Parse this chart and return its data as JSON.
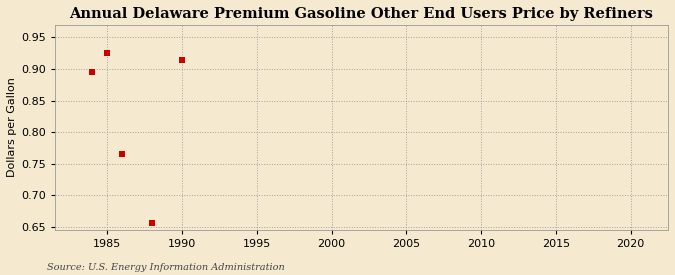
{
  "title": "Annual Delaware Premium Gasoline Other End Users Price by Refiners",
  "ylabel": "Dollars per Gallon",
  "source": "Source: U.S. Energy Information Administration",
  "x_data": [
    1984,
    1985,
    1986,
    1988,
    1990
  ],
  "y_data": [
    0.895,
    0.925,
    0.765,
    0.655,
    0.915
  ],
  "marker_color": "#cc0000",
  "marker": "s",
  "marker_size": 4,
  "xlim": [
    1981.5,
    2022.5
  ],
  "ylim": [
    0.645,
    0.97
  ],
  "xticks": [
    1985,
    1990,
    1995,
    2000,
    2005,
    2010,
    2015,
    2020
  ],
  "yticks": [
    0.65,
    0.7,
    0.75,
    0.8,
    0.85,
    0.9,
    0.95
  ],
  "background_color": "#f5e9d0",
  "grid_color": "#999999",
  "title_fontsize": 10.5,
  "label_fontsize": 8,
  "tick_fontsize": 8,
  "source_fontsize": 7
}
